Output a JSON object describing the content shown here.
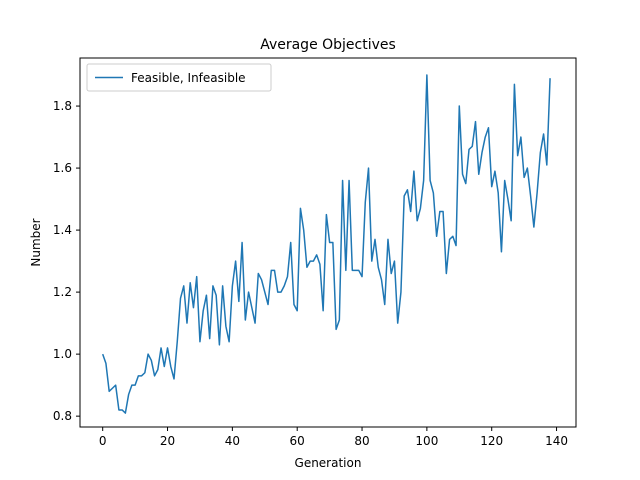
{
  "chart_data": {
    "type": "line",
    "title": "Average Objectives",
    "xlabel": "Generation",
    "ylabel": "Number",
    "xlim": [
      -7,
      146
    ],
    "ylim": [
      0.765,
      1.955
    ],
    "xticks": [
      0,
      20,
      40,
      60,
      80,
      100,
      120,
      140
    ],
    "yticks": [
      0.8,
      1.0,
      1.2,
      1.4,
      1.6,
      1.8
    ],
    "grid": false,
    "legend_position": "top-left",
    "series": [
      {
        "name": "Feasible, Infeasible",
        "color": "#1f77b4",
        "x": [
          0,
          1,
          2,
          3,
          4,
          5,
          6,
          7,
          8,
          9,
          10,
          11,
          12,
          13,
          14,
          15,
          16,
          17,
          18,
          19,
          20,
          21,
          22,
          23,
          24,
          25,
          26,
          27,
          28,
          29,
          30,
          31,
          32,
          33,
          34,
          35,
          36,
          37,
          38,
          39,
          40,
          41,
          42,
          43,
          44,
          45,
          46,
          47,
          48,
          49,
          50,
          51,
          52,
          53,
          54,
          55,
          56,
          57,
          58,
          59,
          60,
          61,
          62,
          63,
          64,
          65,
          66,
          67,
          68,
          69,
          70,
          71,
          72,
          73,
          74,
          75,
          76,
          77,
          78,
          79,
          80,
          81,
          82,
          83,
          84,
          85,
          86,
          87,
          88,
          89,
          90,
          91,
          92,
          93,
          94,
          95,
          96,
          97,
          98,
          99,
          100,
          101,
          102,
          103,
          104,
          105,
          106,
          107,
          108,
          109,
          110,
          111,
          112,
          113,
          114,
          115,
          116,
          117,
          118,
          119,
          120,
          121,
          122,
          123,
          124,
          125,
          126,
          127,
          128,
          129,
          130,
          131,
          132,
          133,
          134,
          135,
          136,
          137,
          138
        ],
        "values": [
          1.0,
          0.97,
          0.88,
          0.89,
          0.9,
          0.82,
          0.82,
          0.81,
          0.87,
          0.9,
          0.9,
          0.93,
          0.93,
          0.94,
          1.0,
          0.98,
          0.93,
          0.95,
          1.02,
          0.96,
          1.02,
          0.96,
          0.92,
          1.04,
          1.18,
          1.22,
          1.1,
          1.23,
          1.15,
          1.25,
          1.04,
          1.14,
          1.19,
          1.05,
          1.22,
          1.19,
          1.03,
          1.22,
          1.09,
          1.04,
          1.22,
          1.3,
          1.17,
          1.36,
          1.11,
          1.2,
          1.15,
          1.1,
          1.26,
          1.24,
          1.2,
          1.16,
          1.27,
          1.27,
          1.2,
          1.2,
          1.22,
          1.25,
          1.36,
          1.16,
          1.14,
          1.47,
          1.4,
          1.28,
          1.3,
          1.3,
          1.32,
          1.29,
          1.14,
          1.45,
          1.36,
          1.36,
          1.08,
          1.11,
          1.56,
          1.27,
          1.56,
          1.27,
          1.27,
          1.27,
          1.25,
          1.49,
          1.6,
          1.3,
          1.37,
          1.28,
          1.24,
          1.16,
          1.37,
          1.26,
          1.3,
          1.1,
          1.2,
          1.51,
          1.53,
          1.46,
          1.59,
          1.43,
          1.47,
          1.56,
          1.9,
          1.56,
          1.52,
          1.38,
          1.46,
          1.46,
          1.26,
          1.37,
          1.38,
          1.35,
          1.8,
          1.58,
          1.55,
          1.66,
          1.67,
          1.75,
          1.58,
          1.65,
          1.7,
          1.73,
          1.54,
          1.59,
          1.52,
          1.33,
          1.56,
          1.5,
          1.43,
          1.87,
          1.64,
          1.7,
          1.57,
          1.6,
          1.51,
          1.41,
          1.52,
          1.65,
          1.71,
          1.61,
          1.89
        ]
      }
    ]
  }
}
